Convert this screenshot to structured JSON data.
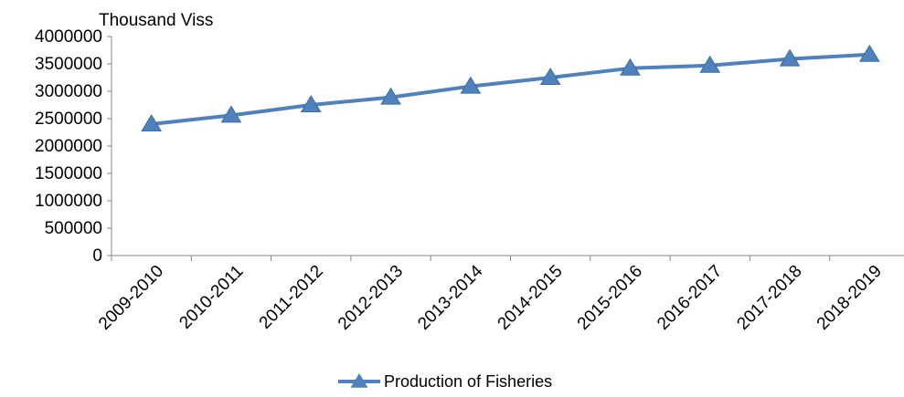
{
  "chart_data": {
    "type": "line",
    "ylabel": "Thousand  Viss",
    "categories": [
      "2009-2010",
      "2010-2011",
      "2011-2012",
      "2012-2013",
      "2013-2014",
      "2014-2015",
      "2015-2016",
      "2016-2017",
      "2017-2018",
      "2018-2019"
    ],
    "series": [
      {
        "name": "Production  of  Fisheries",
        "values": [
          2400000,
          2560000,
          2750000,
          2890000,
          3090000,
          3250000,
          3420000,
          3470000,
          3590000,
          3670000
        ]
      }
    ],
    "ylim": [
      0,
      4000000
    ],
    "yticks": [
      "0",
      "500000",
      "1000000",
      "1500000",
      "2000000",
      "2500000",
      "3000000",
      "3500000",
      "4000000"
    ],
    "grid": false,
    "legend_position": "bottom",
    "colors": {
      "series": "#4f81bd",
      "axis": "#868686",
      "text": "#000000"
    }
  }
}
